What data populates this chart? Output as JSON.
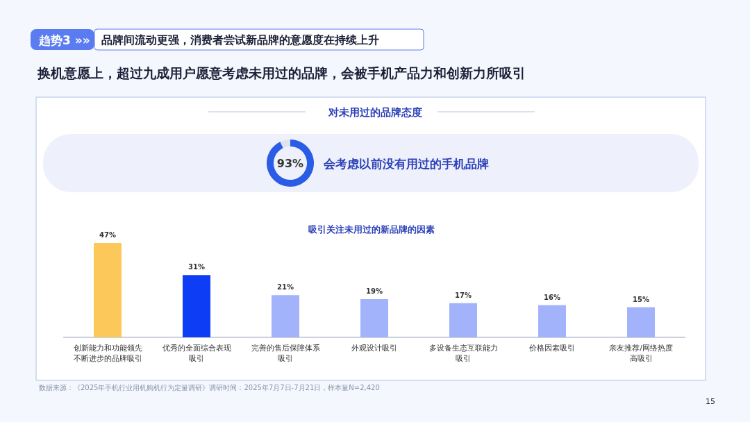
{
  "chart_data": [
    {
      "type": "donut",
      "title": "对未用过的品牌态度",
      "annotations": [
        "趋势3 »»",
        "品牌间流动更强，消费者尝试新品牌的意愿度在持续上升",
        "换机意愿上，超过九成用户愿意考虑未用过的品牌，会被手机产品力和创新力所吸引"
      ],
      "categories": [
        "会考虑以前没有用过的手机品牌",
        null
      ],
      "values": [
        93,
        7
      ],
      "colors": [
        "#2a5ce6",
        "#dfe3ec"
      ],
      "value_labels": [
        "93%",
        null
      ]
    },
    {
      "type": "bar",
      "title": "吸引关注未用过的新品牌的因素",
      "categories": [
        "创新能力和功能领先不断进步的品牌吸引",
        "优秀的全面综合表现吸引",
        "完善的售后保障体系吸引",
        "外观设计吸引",
        "多设备生态互联能力吸引",
        "价格因素吸引",
        "亲友推荐/网络热度高吸引"
      ],
      "values": [
        47,
        31,
        21,
        19,
        17,
        16,
        15
      ],
      "colors": [
        "#fdc85a",
        "#0d3ef5",
        "#a3b3fb",
        "#a3b3fb",
        "#a3b3fb",
        "#a3b3fb",
        "#a3b3fb"
      ],
      "value_labels": [
        "47%",
        "31%",
        "21%",
        "19%",
        "17%",
        "16%",
        "15%"
      ],
      "annotations": [
        "数据来源：《2025年手机行业用机购机行为定量调研》调研时间：2025年7月7日-7月21日，样本量N=2,420",
        "15"
      ]
    }
  ]
}
